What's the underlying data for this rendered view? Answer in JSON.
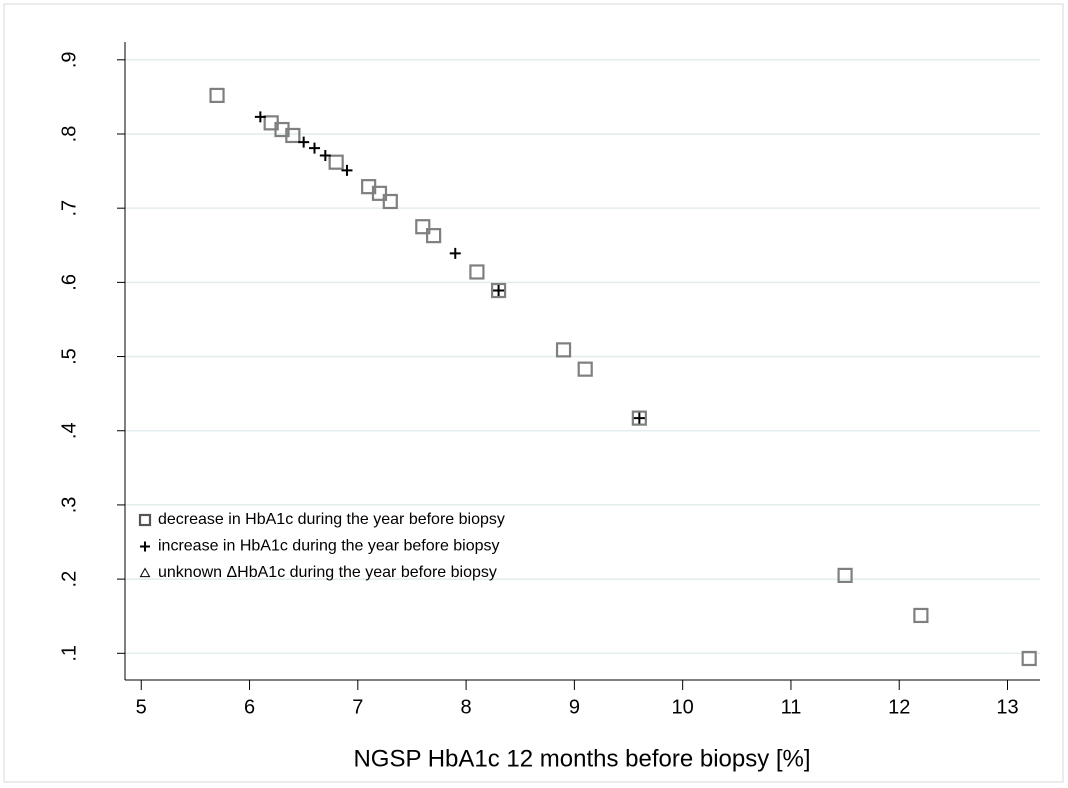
{
  "chart_data": {
    "type": "scatter",
    "x_label": "NGSP HbA1c 12 months before biopsy [%]",
    "xlim": [
      4.85,
      13.3
    ],
    "xticks": [
      5,
      6,
      7,
      8,
      9,
      10,
      11,
      12,
      13
    ],
    "ylim": [
      0.064,
      0.924
    ],
    "yticks": [
      {
        "value": 0.1,
        "label": ".1"
      },
      {
        "value": 0.2,
        "label": ".2"
      },
      {
        "value": 0.3,
        "label": ".3"
      },
      {
        "value": 0.4,
        "label": ".4"
      },
      {
        "value": 0.5,
        "label": ".5"
      },
      {
        "value": 0.6,
        "label": ".6"
      },
      {
        "value": 0.7,
        "label": ".7"
      },
      {
        "value": 0.8,
        "label": ".8"
      },
      {
        "value": 0.9,
        "label": ".9"
      }
    ],
    "grid": true,
    "legend": "lower left",
    "series": [
      {
        "name": "decrease in HbA1c during the year before biopsy",
        "marker": "square",
        "color": "#7f7f7f",
        "x": [
          5.7,
          6.2,
          6.3,
          6.4,
          6.8,
          7.1,
          7.2,
          7.3,
          7.6,
          7.7,
          8.1,
          8.3,
          8.9,
          9.1,
          9.6,
          11.5,
          12.2,
          13.2
        ],
        "values": [
          0.852,
          0.815,
          0.806,
          0.798,
          0.762,
          0.729,
          0.72,
          0.709,
          0.675,
          0.663,
          0.614,
          0.589,
          0.509,
          0.483,
          0.417,
          0.205,
          0.151,
          0.093
        ]
      },
      {
        "name": "increase in HbA1c during the year before biopsy",
        "marker": "plus",
        "color": "#000000",
        "x": [
          6.1,
          6.5,
          6.6,
          6.7,
          6.9,
          7.9,
          8.3,
          9.6
        ],
        "values": [
          0.823,
          0.789,
          0.781,
          0.771,
          0.751,
          0.639,
          0.589,
          0.417
        ]
      },
      {
        "name": "unknown ΔHbA1c during the year before biopsy",
        "marker": "triangle",
        "color": "#000000",
        "x": [],
        "values": []
      }
    ]
  }
}
